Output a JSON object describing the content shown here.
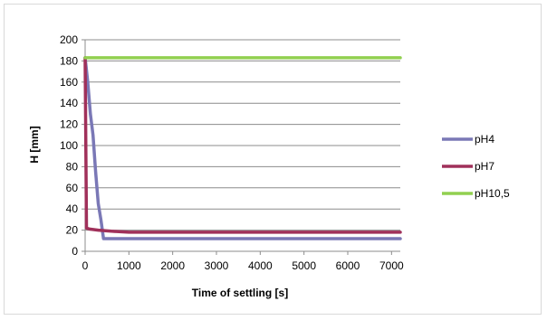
{
  "chart_data": {
    "type": "line",
    "xlabel": "Time of settling [s]",
    "ylabel": "H [mm]",
    "xlim": [
      0,
      7200
    ],
    "ylim": [
      0,
      200
    ],
    "x_ticks": [
      0,
      1000,
      2000,
      3000,
      4000,
      5000,
      6000,
      7000
    ],
    "y_ticks": [
      0,
      20,
      40,
      60,
      80,
      100,
      120,
      140,
      160,
      180,
      200
    ],
    "grid": "horizontal",
    "legend_position": "right",
    "series": [
      {
        "name": "pH4",
        "color": "#7a78b6",
        "points": [
          [
            0,
            183
          ],
          [
            60,
            160
          ],
          [
            120,
            130
          ],
          [
            180,
            110
          ],
          [
            240,
            75
          ],
          [
            300,
            45
          ],
          [
            360,
            30
          ],
          [
            420,
            12
          ],
          [
            1000,
            12
          ],
          [
            3000,
            12
          ],
          [
            5000,
            12
          ],
          [
            7200,
            12
          ]
        ]
      },
      {
        "name": "pH7",
        "color": "#a0305a",
        "points": [
          [
            0,
            183
          ],
          [
            30,
            22
          ],
          [
            100,
            21
          ],
          [
            300,
            20
          ],
          [
            600,
            19
          ],
          [
            1000,
            18
          ],
          [
            3000,
            18
          ],
          [
            5000,
            18
          ],
          [
            7200,
            18
          ]
        ]
      },
      {
        "name": "pH10,5",
        "color": "#92d050",
        "points": [
          [
            0,
            183
          ],
          [
            7200,
            183
          ]
        ]
      }
    ]
  }
}
